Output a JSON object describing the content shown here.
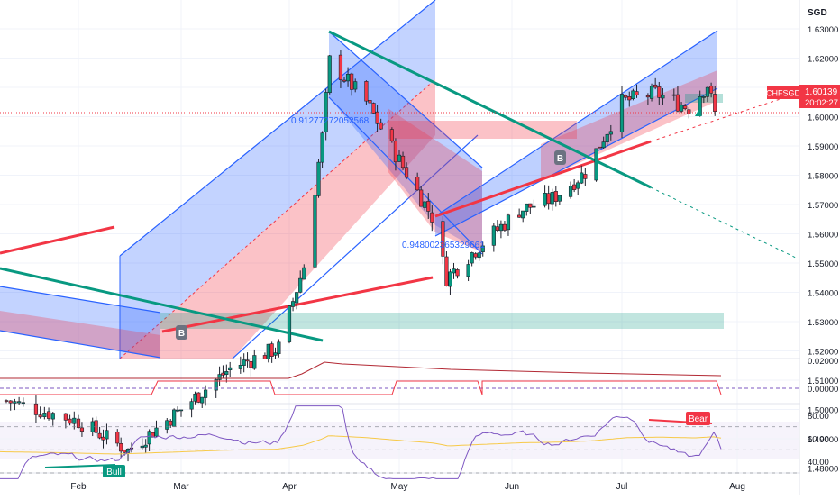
{
  "symbol": "CHFSGD",
  "currency": "SGD",
  "last_price": "1.60139",
  "countdown": "20:02:27",
  "colors": {
    "up": "#26a69a",
    "up_fill": "#089981",
    "down": "#f23645",
    "channel_blue": "#2962ff",
    "teal_line": "#089981",
    "red_line": "#f23645",
    "rsi_line": "#7e57c2",
    "rsi_ma": "#f7c948"
  },
  "main_axis": {
    "ticks": [
      "1.63000",
      "1.62000",
      "1.61000",
      "1.60000",
      "1.59000",
      "1.58000",
      "1.57000",
      "1.56000",
      "1.55000",
      "1.54000",
      "1.53000",
      "1.52000",
      "1.51000",
      "1.50000",
      "1.49000",
      "1.48000"
    ]
  },
  "indicator1_axis": {
    "ticks": [
      "0.02000",
      "0.00000"
    ]
  },
  "rsi_axis": {
    "ticks": [
      "80.00",
      "60.00",
      "40.00"
    ]
  },
  "time_axis": {
    "labels": [
      "Feb",
      "Mar",
      "Apr",
      "May",
      "Jun",
      "Jul",
      "Aug"
    ]
  },
  "annotations": {
    "fib_top": "0.91277272052568",
    "fib_bottom": "0.948002365329661",
    "buy_badge": "B",
    "bear_label": "Bear",
    "bull_label": "Bull"
  },
  "chart_data": {
    "type": "candlestick",
    "symbol": "CHFSGD",
    "y_unit": "SGD",
    "ylim": [
      1.478,
      1.636
    ],
    "time_range": [
      "2024-01-15",
      "2024-08-05"
    ],
    "anchors": [
      {
        "date": "2024-01-15",
        "close": 1.503
      },
      {
        "date": "2024-02-01",
        "close": 1.496
      },
      {
        "date": "2024-02-15",
        "close": 1.486
      },
      {
        "date": "2024-03-01",
        "close": 1.5
      },
      {
        "date": "2024-03-15",
        "close": 1.514
      },
      {
        "date": "2024-03-29",
        "close": 1.521
      },
      {
        "date": "2024-04-05",
        "close": 1.549
      },
      {
        "date": "2024-04-10",
        "close": 1.593
      },
      {
        "date": "2024-04-12",
        "close": 1.619
      },
      {
        "date": "2024-04-22",
        "close": 1.605
      },
      {
        "date": "2024-05-01",
        "close": 1.585
      },
      {
        "date": "2024-05-10",
        "close": 1.566
      },
      {
        "date": "2024-05-14",
        "close": 1.545
      },
      {
        "date": "2024-05-24",
        "close": 1.557
      },
      {
        "date": "2024-06-03",
        "close": 1.568
      },
      {
        "date": "2024-06-12",
        "close": 1.572
      },
      {
        "date": "2024-06-21",
        "close": 1.581
      },
      {
        "date": "2024-07-01",
        "close": 1.605
      },
      {
        "date": "2024-07-10",
        "close": 1.608
      },
      {
        "date": "2024-07-19",
        "close": 1.603
      },
      {
        "date": "2024-07-24",
        "close": 1.611
      },
      {
        "date": "2024-07-26",
        "close": 1.601
      }
    ],
    "rsi": {
      "ylim": [
        30,
        90
      ],
      "levels": [
        70,
        50,
        30
      ]
    }
  }
}
